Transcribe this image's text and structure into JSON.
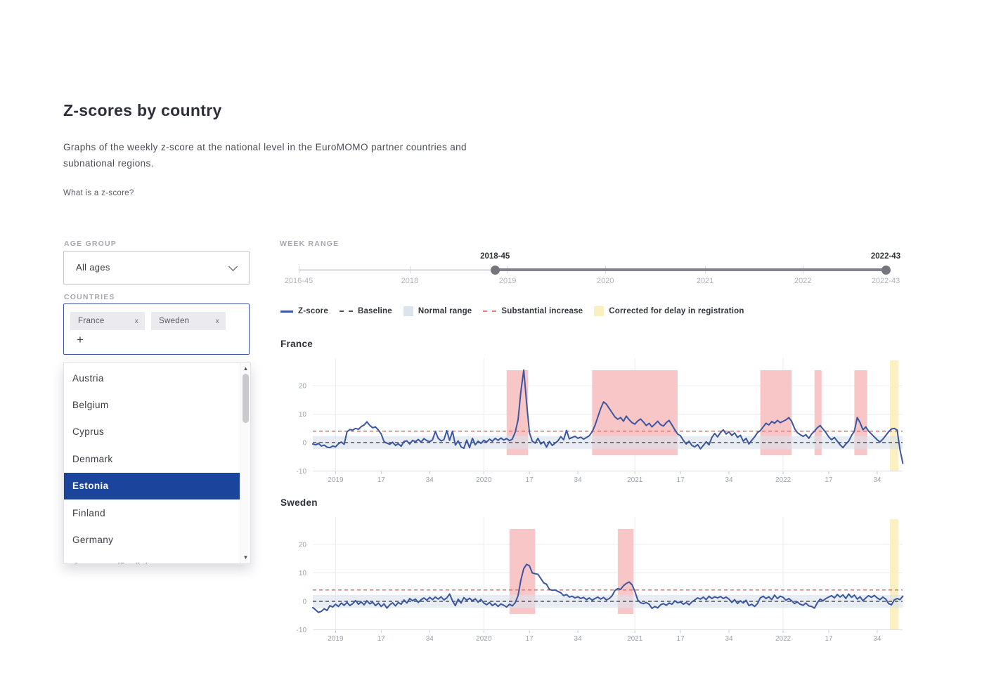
{
  "page": {
    "title": "Z-scores by country",
    "description": "Graphs of the weekly z-score at the national level in the EuroMOMO partner countries and subnational regions.",
    "zscore_link": "What is a z-score?"
  },
  "filters": {
    "age_group": {
      "label": "AGE GROUP",
      "value": "All ages"
    },
    "countries": {
      "label": "COUNTRIES",
      "add_symbol": "+",
      "selected": [
        {
          "label": "France",
          "remove_symbol": "x"
        },
        {
          "label": "Sweden",
          "remove_symbol": "x"
        }
      ],
      "dropdown_items": [
        {
          "label": "Austria",
          "highlighted": false
        },
        {
          "label": "Belgium",
          "highlighted": false
        },
        {
          "label": "Cyprus",
          "highlighted": false
        },
        {
          "label": "Denmark",
          "highlighted": false
        },
        {
          "label": "Estonia",
          "highlighted": true
        },
        {
          "label": "Finland",
          "highlighted": false
        },
        {
          "label": "Germany",
          "highlighted": false
        },
        {
          "label": "Germany (Berlin)",
          "highlighted": false
        }
      ]
    }
  },
  "week_range": {
    "label": "WEEK RANGE",
    "selected_start": "2018-45",
    "selected_end": "2022-43",
    "handles": [
      {
        "label": "2018-45",
        "pct": 33.44
      },
      {
        "label": "2022-43",
        "pct": 100
      }
    ],
    "ticks": [
      {
        "label": "2016-45",
        "pct": 0
      },
      {
        "label": "2018",
        "pct": 18.91
      },
      {
        "label": "2019",
        "pct": 35.58
      },
      {
        "label": "2020",
        "pct": 52.24
      },
      {
        "label": "2021",
        "pct": 69.23
      },
      {
        "label": "2022",
        "pct": 85.9
      },
      {
        "label": "2022-43",
        "pct": 100
      }
    ]
  },
  "legend": {
    "items": [
      {
        "label": "Z-score",
        "swatch": "line",
        "color": "#3a56a0"
      },
      {
        "label": "Baseline",
        "swatch": "dash",
        "color": "#50505a"
      },
      {
        "label": "Normal range",
        "swatch": "box",
        "color": "#dbe3ed"
      },
      {
        "label": "Substantial increase",
        "swatch": "dash",
        "color": "#e57a7a"
      },
      {
        "label": "Corrected for delay in registration",
        "swatch": "box",
        "color": "#faf0bd"
      }
    ]
  },
  "chart_data": [
    {
      "type": "line",
      "title": "France",
      "x_start_week": "2018-45",
      "x_end_week": "2022-43",
      "x_unit": "ISO week index from 2018-45",
      "ylim": [
        -11,
        28
      ],
      "yticks": [
        20,
        10,
        0,
        -10
      ],
      "xticks": [
        {
          "pos": 8,
          "label": "2019"
        },
        {
          "pos": 24,
          "label": "17"
        },
        {
          "pos": 41,
          "label": "34"
        },
        {
          "pos": 60,
          "label": "2020"
        },
        {
          "pos": 76,
          "label": "17"
        },
        {
          "pos": 93,
          "label": "34"
        },
        {
          "pos": 113,
          "label": "2021"
        },
        {
          "pos": 129,
          "label": "17"
        },
        {
          "pos": 146,
          "label": "34"
        },
        {
          "pos": 165,
          "label": "2022"
        },
        {
          "pos": 181,
          "label": "17"
        },
        {
          "pos": 198,
          "label": "34"
        }
      ],
      "baseline": 0,
      "substantial_increase_threshold": 4,
      "normal_range": [
        -2.3,
        2.3
      ],
      "red_bands": [
        [
          68,
          75.5
        ],
        [
          98,
          128
        ],
        [
          157,
          168
        ],
        [
          176,
          178.5
        ],
        [
          190,
          194.5
        ]
      ],
      "yellow_bands": [
        [
          202.5,
          205.5
        ]
      ],
      "values": [
        -0.5,
        -0.8,
        -0.3,
        -1.2,
        -0.9,
        -1.6,
        -1.8,
        -1.2,
        -1.5,
        -0.4,
        0.2,
        -0.6,
        3.8,
        4.6,
        4.4,
        5.0,
        4.7,
        5.6,
        6.2,
        7.3,
        6.0,
        5.2,
        5.5,
        4.4,
        3.0,
        0.3,
        -0.2,
        -0.6,
        0.1,
        -1.0,
        -0.4,
        -1.3,
        0.4,
        0.6,
        -0.5,
        0.8,
        0.3,
        1.1,
        0.2,
        1.4,
        0.7,
        0.3,
        1.0,
        3.9,
        1.5,
        0.6,
        1.0,
        4.2,
        0.8,
        4.0,
        -0.9,
        0.6,
        -1.5,
        -2.0,
        0.9,
        -1.8,
        1.5,
        -0.8,
        0.5,
        -0.3,
        0.8,
        0.2,
        1.2,
        0.5,
        1.5,
        0.8,
        1.6,
        0.9,
        1.4,
        0.7,
        1.2,
        3.6,
        8.0,
        18.0,
        25.5,
        14.0,
        3.5,
        0.5,
        -0.2,
        1.5,
        -0.5,
        0.3,
        -1.6,
        0.4,
        -1.0,
        -0.2,
        0.6,
        2.1,
        1.0,
        4.3,
        1.3,
        1.8,
        2.2,
        1.5,
        1.9,
        1.2,
        1.8,
        2.4,
        3.8,
        6.0,
        9.0,
        12.0,
        14.3,
        13.5,
        12.0,
        10.5,
        9.0,
        8.2,
        8.8,
        7.5,
        9.3,
        8.0,
        7.0,
        6.5,
        7.6,
        8.3,
        7.2,
        6.0,
        6.8,
        5.5,
        6.5,
        7.5,
        6.3,
        5.8,
        7.0,
        7.8,
        6.2,
        4.5,
        3.0,
        2.4,
        0.8,
        -0.5,
        0.5,
        -1.0,
        -1.5,
        -0.7,
        -2.2,
        -1.0,
        0.3,
        -0.8,
        1.8,
        3.2,
        2.0,
        3.5,
        4.5,
        3.0,
        3.8,
        2.5,
        3.4,
        1.8,
        2.6,
        0.5,
        1.5,
        -0.5,
        0.8,
        2.0,
        3.5,
        4.2,
        5.5,
        6.8,
        6.2,
        7.4,
        6.8,
        7.8,
        7.0,
        7.5,
        8.0,
        8.8,
        7.5,
        5.0,
        3.5,
        2.8,
        2.2,
        2.8,
        1.5,
        3.0,
        4.0,
        5.2,
        6.0,
        4.8,
        3.5,
        2.0,
        1.0,
        1.8,
        0.5,
        -0.8,
        -1.8,
        -0.5,
        0.5,
        2.5,
        4.0,
        8.8,
        7.0,
        4.5,
        5.5,
        4.0,
        3.0,
        2.0,
        1.0,
        0.2,
        1.2,
        2.5,
        3.8,
        4.8,
        5.0,
        4.4,
        -2.5,
        -7.3
      ]
    },
    {
      "type": "line",
      "title": "Sweden",
      "x_start_week": "2018-45",
      "x_end_week": "2022-43",
      "x_unit": "ISO week index from 2018-45",
      "ylim": [
        -11,
        28
      ],
      "yticks": [
        20,
        10,
        0,
        -10
      ],
      "xticks": [
        {
          "pos": 8,
          "label": "2019"
        },
        {
          "pos": 24,
          "label": "17"
        },
        {
          "pos": 41,
          "label": "34"
        },
        {
          "pos": 60,
          "label": "2020"
        },
        {
          "pos": 76,
          "label": "17"
        },
        {
          "pos": 93,
          "label": "34"
        },
        {
          "pos": 113,
          "label": "2021"
        },
        {
          "pos": 129,
          "label": "17"
        },
        {
          "pos": 146,
          "label": "34"
        },
        {
          "pos": 165,
          "label": "2022"
        },
        {
          "pos": 181,
          "label": "17"
        },
        {
          "pos": 198,
          "label": "34"
        }
      ],
      "baseline": 0,
      "substantial_increase_threshold": 4,
      "normal_range": [
        -2.3,
        2.3
      ],
      "red_bands": [
        [
          69,
          78
        ],
        [
          107,
          112.5
        ]
      ],
      "yellow_bands": [
        [
          202.5,
          205.5
        ]
      ],
      "values": [
        -2.2,
        -3.0,
        -3.9,
        -3.5,
        -2.6,
        -3.2,
        -1.5,
        -2.0,
        -1.0,
        -1.8,
        -0.6,
        -1.4,
        -0.4,
        -1.5,
        -0.8,
        0.3,
        -1.0,
        -0.2,
        -1.2,
        0.2,
        -0.9,
        -0.3,
        -1.5,
        -0.6,
        -1.8,
        -0.9,
        -2.4,
        -1.2,
        -0.5,
        -1.6,
        -0.4,
        -1.0,
        0.5,
        -0.6,
        1.0,
        0.2,
        0.8,
        -0.4,
        0.6,
        1.2,
        0.4,
        1.4,
        0.6,
        1.5,
        0.8,
        1.6,
        0.5,
        1.2,
        2.6,
        0.2,
        -1.5,
        0.8,
        -0.6,
        1.3,
        0.4,
        1.1,
        0.2,
        0.9,
        -0.3,
        0.7,
        -0.6,
        -1.2,
        -0.4,
        -1.5,
        -0.8,
        -1.8,
        -0.9,
        -1.4,
        -2.0,
        -1.0,
        -1.6,
        -0.5,
        2.0,
        7.5,
        11.5,
        13.0,
        12.5,
        10.0,
        9.7,
        9.5,
        8.0,
        6.5,
        6.0,
        4.2,
        3.9,
        4.0,
        3.5,
        3.0,
        2.0,
        2.4,
        1.5,
        1.8,
        1.2,
        1.6,
        1.0,
        1.4,
        0.6,
        1.2,
        0.4,
        1.0,
        1.5,
        0.8,
        1.4,
        0.5,
        1.0,
        2.0,
        3.8,
        4.5,
        4.2,
        5.5,
        6.3,
        6.8,
        5.8,
        3.5,
        0.5,
        -0.5,
        -0.8,
        -0.4,
        -1.0,
        -2.5,
        -1.8,
        -2.3,
        -1.2,
        -0.8,
        -1.4,
        -0.6,
        -1.0,
        0.2,
        -0.5,
        -0.2,
        -1.0,
        -0.4,
        -1.2,
        -0.2,
        0.5,
        1.2,
        0.8,
        1.5,
        0.6,
        1.8,
        1.0,
        1.6,
        1.2,
        1.7,
        1.0,
        1.5,
        0.8,
        -0.4,
        0.6,
        -0.8,
        0.2,
        -0.6,
        0.4,
        -1.5,
        -1.0,
        -1.8,
        -0.8,
        1.2,
        1.8,
        1.0,
        1.6,
        0.6,
        2.2,
        1.0,
        1.8,
        1.4,
        0.4,
        1.0,
        0.2,
        -0.8,
        -0.2,
        -1.0,
        -1.4,
        -0.6,
        -1.6,
        -1.8,
        -2.4,
        -0.5,
        0.8,
        0.2,
        1.0,
        1.5,
        2.0,
        1.2,
        2.4,
        1.5,
        2.3,
        1.0,
        2.6,
        1.4,
        2.2,
        0.8,
        1.6,
        0.2,
        1.2,
        2.0,
        1.4,
        2.1,
        1.2,
        0.6,
        1.5,
        0.8,
        -0.8,
        -1.2,
        0.5,
        1.0,
        0.6,
        1.8
      ]
    }
  ],
  "colors": {
    "zscore_line": "#3a56a0",
    "baseline_dash": "#50505a",
    "normal_range_band": "#d9e2ec",
    "substantial_increase_line": "#e57a7a",
    "substantial_increase_band": "#f8c6c7",
    "corrected_band": "#faf0c0",
    "highlight_row": "#1b449c",
    "grid": "#ececf0",
    "axis_text": "#9ba1aa"
  }
}
